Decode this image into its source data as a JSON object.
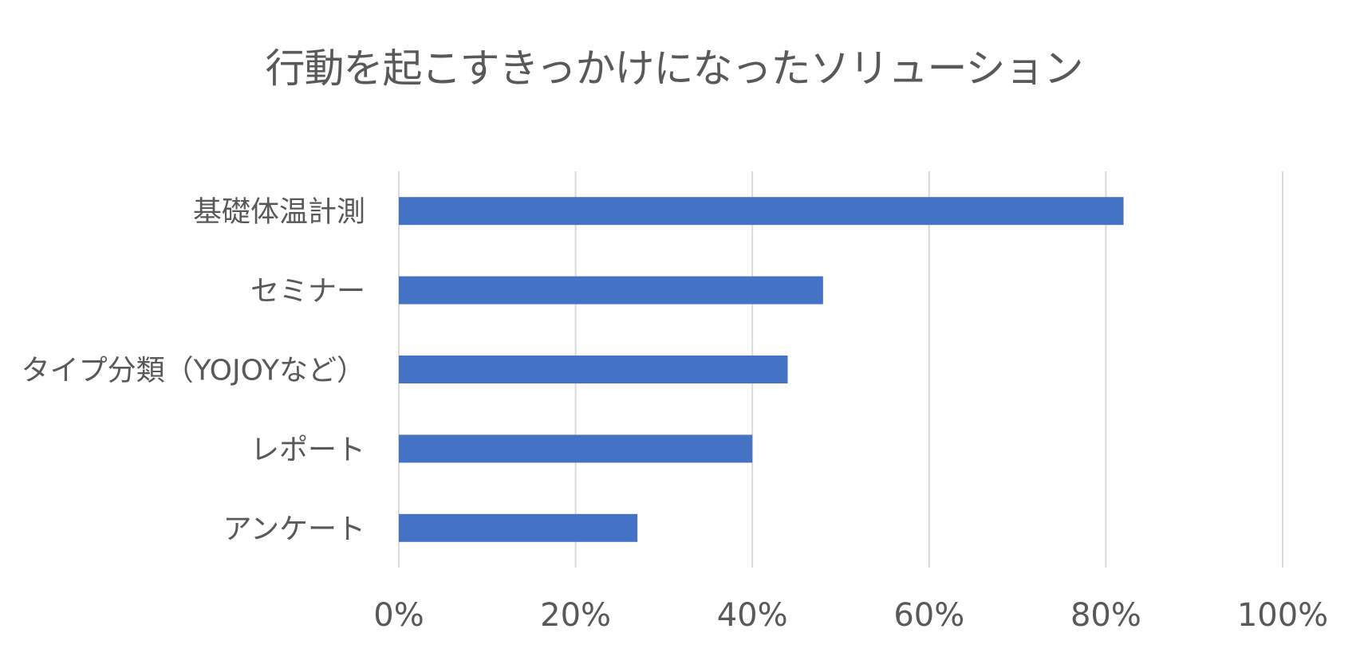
{
  "chart_data": {
    "type": "bar",
    "orientation": "horizontal",
    "title": "行動を起こすきっかけになったソリューション",
    "categories": [
      "基礎体温計測",
      "セミナー",
      "タイプ分類（YOJOYなど）",
      "レポート",
      "アンケート"
    ],
    "values": [
      82,
      48,
      44,
      40,
      27
    ],
    "unit": "%",
    "xlim": [
      0,
      100
    ],
    "xticks": [
      0,
      20,
      40,
      60,
      80,
      100
    ],
    "xtick_labels": [
      "0%",
      "20%",
      "40%",
      "60%",
      "80%",
      "100%"
    ],
    "xlabel": "",
    "ylabel": "",
    "grid": true,
    "legend": "none",
    "colors": {
      "bar": "#4472C4",
      "grid": "#D9D9D9",
      "text": "#595959"
    }
  }
}
